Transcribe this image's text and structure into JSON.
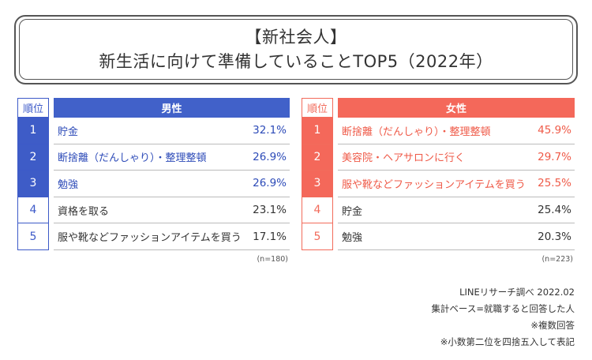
{
  "title": {
    "line1": "【新社会人】",
    "line2": "新生活に向けて準備していることTOP5（2022年）"
  },
  "colors": {
    "male_accent": "#4161c9",
    "female_accent": "#f4685a"
  },
  "chart_data": [
    {
      "type": "table",
      "title": "男性",
      "rank_header": "順位",
      "n_label": "(n=180)",
      "rows": [
        {
          "rank": "1",
          "label": "貯金",
          "value": "32.1%"
        },
        {
          "rank": "2",
          "label": "断捨離（だんしゃり）・整理整頓",
          "value": "26.9%"
        },
        {
          "rank": "3",
          "label": "勉強",
          "value": "26.9%"
        },
        {
          "rank": "4",
          "label": "資格を取る",
          "value": "23.1%"
        },
        {
          "rank": "5",
          "label": "服や靴などファッションアイテムを買う",
          "value": "17.1%"
        }
      ]
    },
    {
      "type": "table",
      "title": "女性",
      "rank_header": "順位",
      "n_label": "(n=223)",
      "rows": [
        {
          "rank": "1",
          "label": "断捨離（だんしゃり）・整理整頓",
          "value": "45.9%"
        },
        {
          "rank": "2",
          "label": "美容院・ヘアサロンに行く",
          "value": "29.7%"
        },
        {
          "rank": "3",
          "label": "服や靴などファッションアイテムを買う",
          "value": "25.5%"
        },
        {
          "rank": "4",
          "label": "貯金",
          "value": "25.4%"
        },
        {
          "rank": "5",
          "label": "勉強",
          "value": "20.3%"
        }
      ]
    }
  ],
  "footer": {
    "source": "LINEリサーチ調べ 2022.02",
    "base": "集計ベース=就職すると回答した人",
    "multiple": "※複数回答",
    "rounding": "※小数第二位を四捨五入して表記"
  }
}
